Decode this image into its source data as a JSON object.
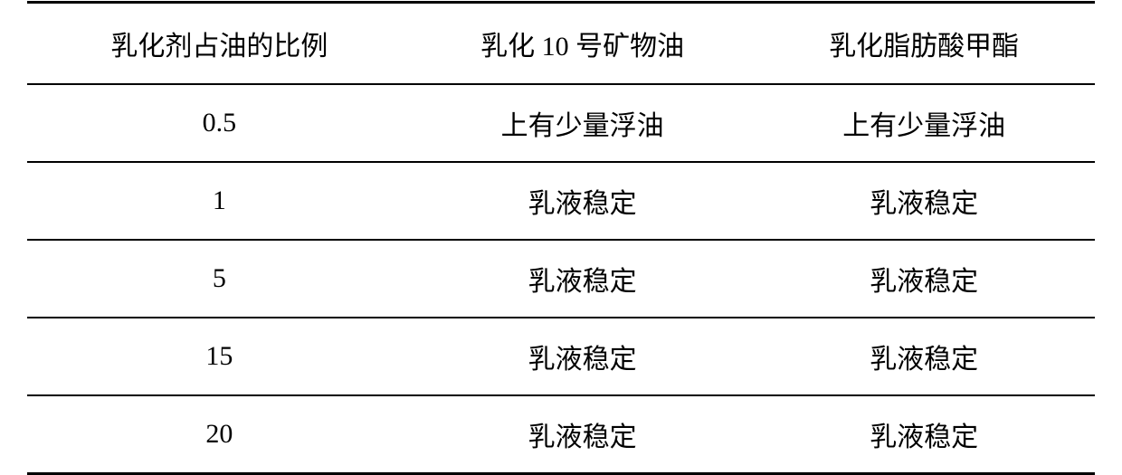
{
  "table": {
    "columns": [
      "乳化剂占油的比例",
      "乳化 10 号矿物油",
      "乳化脂肪酸甲酯"
    ],
    "rows": [
      [
        "0.5",
        "上有少量浮油",
        "上有少量浮油"
      ],
      [
        "1",
        "乳液稳定",
        "乳液稳定"
      ],
      [
        "5",
        "乳液稳定",
        "乳液稳定"
      ],
      [
        "15",
        "乳液稳定",
        "乳液稳定"
      ],
      [
        "20",
        "乳液稳定",
        "乳液稳定"
      ]
    ],
    "border_color": "#000000",
    "background_color": "#ffffff",
    "text_color": "#000000",
    "font_size": 30,
    "header_border_top_width": 3,
    "header_border_bottom_width": 2,
    "row_border_width": 2,
    "last_row_border_width": 3,
    "column_widths": [
      "36%",
      "32%",
      "32%"
    ]
  }
}
